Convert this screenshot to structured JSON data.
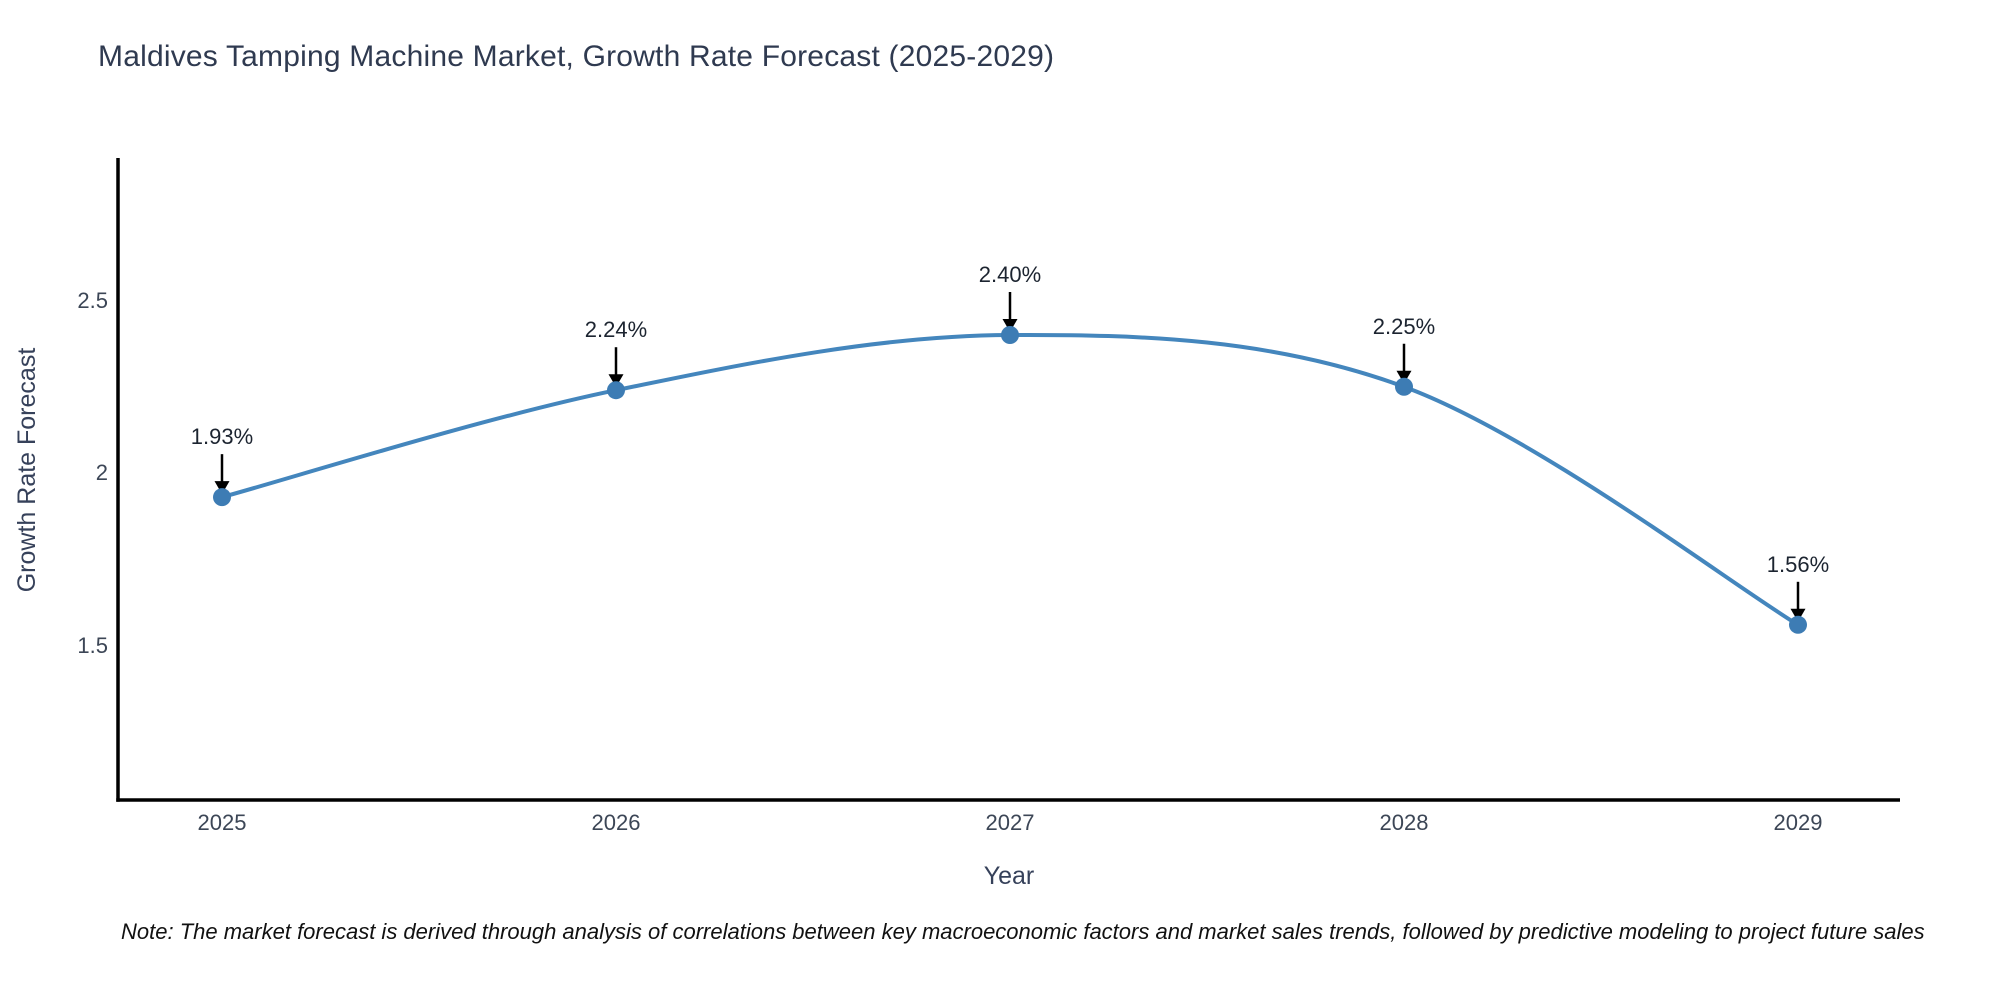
{
  "note": "Note: The market forecast is derived through analysis of correlations between key macroeconomic factors and market sales trends, followed by predictive modeling to project future sales",
  "chart_data": {
    "type": "line",
    "line_shape": "spline",
    "title": "Maldives Tamping Machine Market, Growth Rate Forecast (2025-2029)",
    "xlabel": "Year",
    "ylabel": "Growth Rate Forecast",
    "x": [
      2025,
      2026,
      2027,
      2028,
      2029
    ],
    "x_tick_labels": [
      "2025",
      "2026",
      "2027",
      "2028",
      "2029"
    ],
    "series": [
      {
        "name": "Growth Rate Forecast",
        "values": [
          1.93,
          2.24,
          2.4,
          2.25,
          1.56
        ],
        "point_labels": [
          "1.93%",
          "2.24%",
          "2.40%",
          "2.25%",
          "1.56%"
        ]
      }
    ],
    "y_ticks": [
      2.5,
      2,
      1.5
    ],
    "y_tick_labels": [
      "2.5",
      "2",
      "1.5"
    ],
    "ylim": [
      1.05,
      2.86
    ],
    "grid": false,
    "legend": "none",
    "annotation_arrows": true,
    "colors": {
      "line": "#4486bd",
      "marker": "#3d7cb4",
      "axis_line": "#000000",
      "tick_text": "#3c4656",
      "axis_title_text": "#36415a",
      "chart_title_text": "#2f3a50",
      "annotation_text": "#1c2430",
      "arrow": "#000000",
      "background": "#ffffff"
    }
  }
}
